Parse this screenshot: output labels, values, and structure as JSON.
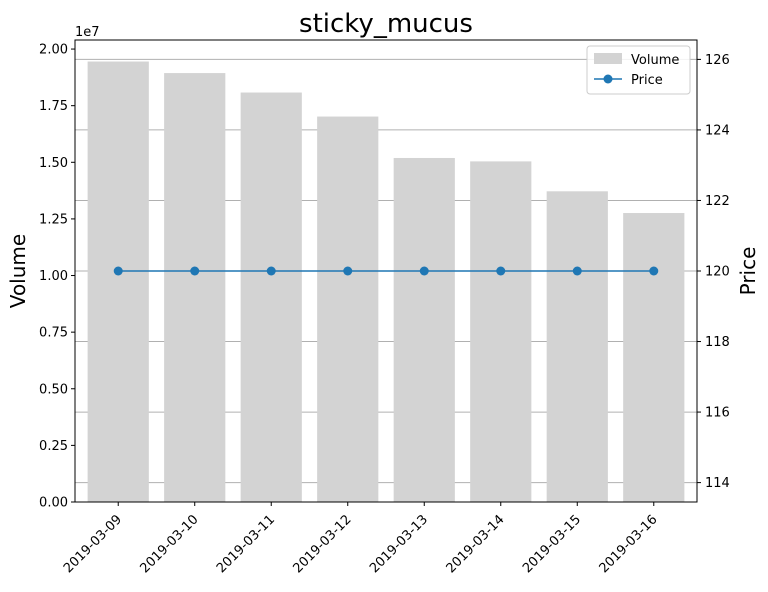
{
  "chart_data": {
    "type": "bar",
    "title": "sticky_mucus",
    "categories": [
      "2019-03-09",
      "2019-03-10",
      "2019-03-11",
      "2019-03-12",
      "2019-03-13",
      "2019-03-14",
      "2019-03-15",
      "2019-03-16"
    ],
    "series": [
      {
        "name": "Volume",
        "type": "bar",
        "axis": "left",
        "color": "#d3d3d3",
        "values": [
          19450000,
          18940000,
          18080000,
          17020000,
          15190000,
          15040000,
          13720000,
          12760000
        ]
      },
      {
        "name": "Price",
        "type": "line",
        "axis": "right",
        "color": "#1f77b4",
        "marker": "circle",
        "values": [
          120,
          120,
          120,
          120,
          120,
          120,
          120,
          120
        ]
      }
    ],
    "y_left": {
      "label": "Volume",
      "offset_text": "1e7",
      "scale": 10000000,
      "ylim": [
        0,
        20400000
      ],
      "ticks": [
        0,
        2500000,
        5000000,
        7500000,
        10000000,
        12500000,
        15000000,
        17500000,
        20000000
      ],
      "tick_labels": [
        "0.00",
        "0.25",
        "0.50",
        "0.75",
        "1.00",
        "1.25",
        "1.50",
        "1.75",
        "2.00"
      ]
    },
    "y_right": {
      "label": "Price",
      "ylim": [
        113.45,
        126.55
      ],
      "ticks": [
        114,
        116,
        118,
        120,
        122,
        124,
        126
      ],
      "tick_labels": [
        "114",
        "116",
        "118",
        "120",
        "122",
        "124",
        "126"
      ],
      "grid": true
    },
    "xlabel": "",
    "legend": {
      "position": "top-right",
      "entries": [
        "Volume",
        "Price"
      ]
    }
  }
}
